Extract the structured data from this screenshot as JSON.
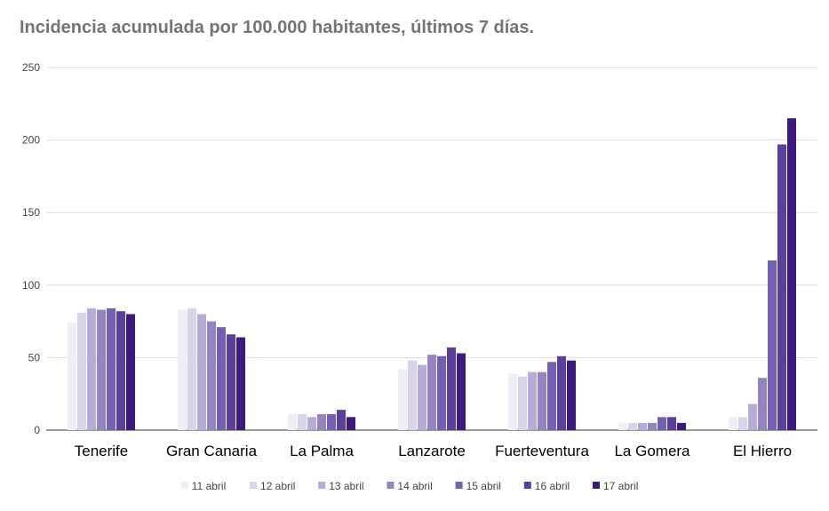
{
  "chart_data": {
    "type": "bar",
    "title": "Incidencia acumulada por 100.000 habitantes, últimos 7 días.",
    "xlabel": "",
    "ylabel": "",
    "ylim": [
      0,
      250
    ],
    "yticks": [
      0,
      50,
      100,
      150,
      200,
      250
    ],
    "grid": true,
    "legend_position": "bottom",
    "categories": [
      "Tenerife",
      "Gran Canaria",
      "La Palma",
      "Lanzarote",
      "Fuerteventura",
      "La Gomera",
      "El Hierro"
    ],
    "series": [
      {
        "name": "11 abril",
        "color": "#efeef6",
        "values": [
          74,
          83,
          11,
          42,
          39,
          5,
          9
        ]
      },
      {
        "name": "12 abril",
        "color": "#d9d4ea",
        "values": [
          81,
          84,
          11,
          48,
          37,
          5,
          9
        ]
      },
      {
        "name": "13 abril",
        "color": "#b7acd6",
        "values": [
          84,
          80,
          9,
          45,
          40,
          5,
          18
        ]
      },
      {
        "name": "14 abril",
        "color": "#9285c2",
        "values": [
          83,
          75,
          11,
          52,
          40,
          5,
          36
        ]
      },
      {
        "name": "15 abril",
        "color": "#7460b0",
        "values": [
          84,
          71,
          11,
          51,
          47,
          9,
          117
        ]
      },
      {
        "name": "16 abril",
        "color": "#5b3f9e",
        "values": [
          82,
          66,
          14,
          57,
          51,
          9,
          197
        ]
      },
      {
        "name": "17 abril",
        "color": "#3c1b7c",
        "values": [
          80,
          64,
          9,
          53,
          48,
          5,
          215
        ]
      }
    ]
  }
}
